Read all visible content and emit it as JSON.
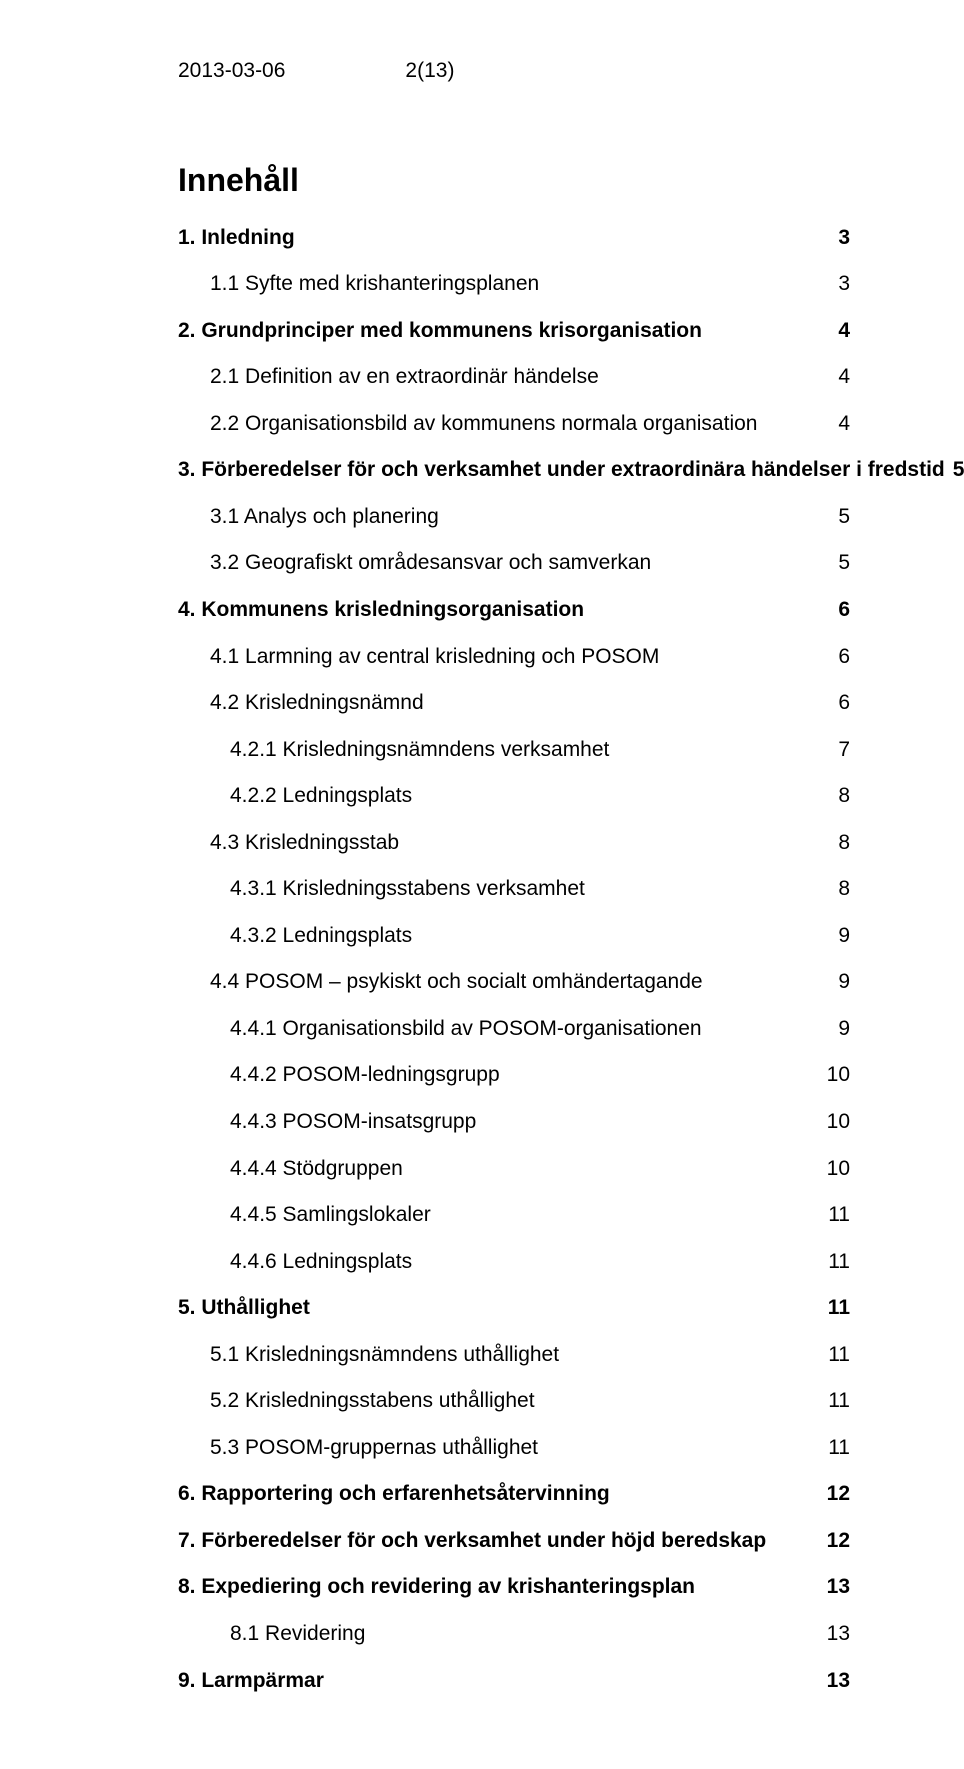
{
  "header": {
    "date": "2013-03-06",
    "pageref": "2(13)"
  },
  "toc_title": "Innehåll",
  "toc": [
    {
      "label": "1. Inledning",
      "page": "3",
      "bold": true,
      "indent": 0
    },
    {
      "label": "1.1 Syfte med krishanteringsplanen",
      "page": "3",
      "bold": false,
      "indent": 1
    },
    {
      "label": "2. Grundprinciper med kommunens krisorganisation",
      "page": "4",
      "bold": true,
      "indent": 0
    },
    {
      "label": "2.1 Definition av en extraordinär händelse",
      "page": "4",
      "bold": false,
      "indent": 1
    },
    {
      "label": "2.2 Organisationsbild av kommunens normala organisation",
      "page": "4",
      "bold": false,
      "indent": 1
    },
    {
      "label": "3. Förberedelser för och verksamhet under extraordinära händelser i fredstid",
      "page": "5",
      "bold": true,
      "indent": 0
    },
    {
      "label": "3.1 Analys och planering",
      "page": "5",
      "bold": false,
      "indent": 1
    },
    {
      "label": "3.2 Geografiskt områdesansvar och samverkan",
      "page": "5",
      "bold": false,
      "indent": 1
    },
    {
      "label": "4. Kommunens krisledningsorganisation",
      "page": "6",
      "bold": true,
      "indent": 0
    },
    {
      "label": "4.1 Larmning av central krisledning och POSOM",
      "page": "6",
      "bold": false,
      "indent": 1
    },
    {
      "label": "4.2 Krisledningsnämnd",
      "page": "6",
      "bold": false,
      "indent": 1
    },
    {
      "label": "4.2.1 Krisledningsnämndens verksamhet",
      "page": "7",
      "bold": false,
      "indent": 2
    },
    {
      "label": "4.2.2 Ledningsplats",
      "page": "8",
      "bold": false,
      "indent": 2
    },
    {
      "label": "4.3 Krisledningsstab",
      "page": "8",
      "bold": false,
      "indent": 1
    },
    {
      "label": "4.3.1 Krisledningsstabens verksamhet",
      "page": "8",
      "bold": false,
      "indent": 2
    },
    {
      "label": "4.3.2 Ledningsplats",
      "page": "9",
      "bold": false,
      "indent": 2
    },
    {
      "label": "4.4 POSOM – psykiskt och socialt omhändertagande",
      "page": "9",
      "bold": false,
      "indent": 1
    },
    {
      "label": "4.4.1 Organisationsbild av POSOM-organisationen",
      "page": "9",
      "bold": false,
      "indent": 2
    },
    {
      "label": "4.4.2 POSOM-ledningsgrupp",
      "page": "10",
      "bold": false,
      "indent": 2
    },
    {
      "label": "4.4.3 POSOM-insatsgrupp",
      "page": "10",
      "bold": false,
      "indent": 2
    },
    {
      "label": "4.4.4 Stödgruppen",
      "page": "10",
      "bold": false,
      "indent": 2
    },
    {
      "label": "4.4.5 Samlingslokaler",
      "page": "11",
      "bold": false,
      "indent": 2
    },
    {
      "label": "4.4.6 Ledningsplats",
      "page": "11",
      "bold": false,
      "indent": 2
    },
    {
      "label": "5. Uthållighet",
      "page": "11",
      "bold": true,
      "indent": 0
    },
    {
      "label": "5.1 Krisledningsnämndens uthållighet",
      "page": "11",
      "bold": false,
      "indent": 1
    },
    {
      "label": "5.2 Krisledningsstabens uthållighet",
      "page": "11",
      "bold": false,
      "indent": 1
    },
    {
      "label": "5.3 POSOM-gruppernas uthållighet",
      "page": "11",
      "bold": false,
      "indent": 1
    },
    {
      "label": "6. Rapportering och erfarenhetsåtervinning",
      "page": "12",
      "bold": true,
      "indent": 0
    },
    {
      "label": "7. Förberedelser för och verksamhet under höjd beredskap",
      "page": "12",
      "bold": true,
      "indent": 0
    },
    {
      "label": "8. Expediering och revidering av krishanteringsplan",
      "page": "13",
      "bold": true,
      "indent": 0
    },
    {
      "label": "8.1 Revidering",
      "page": "13",
      "bold": false,
      "indent": 2
    },
    {
      "label": "9. Larmpärmar",
      "page": "13",
      "bold": true,
      "indent": 0
    }
  ]
}
